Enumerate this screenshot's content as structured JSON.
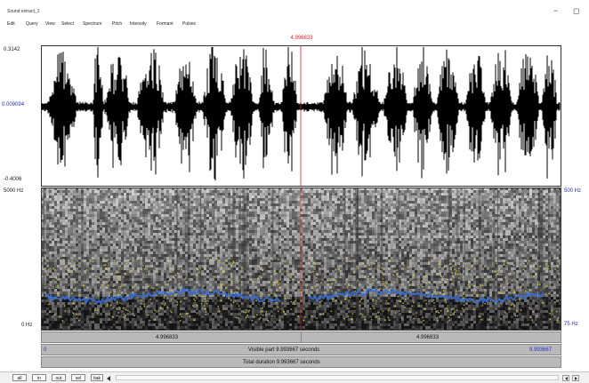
{
  "window": {
    "title": "Sound extract_1",
    "minimize_glyph": "−",
    "restore_glyph": "◻"
  },
  "menu": [
    {
      "label": "Edit"
    },
    {
      "label": "Query"
    },
    {
      "label": "View"
    },
    {
      "label": "Select"
    },
    {
      "label": "Spectrum"
    },
    {
      "label": "Pitch"
    },
    {
      "label": "Intensity"
    },
    {
      "label": "Formant"
    },
    {
      "label": "Pulses"
    }
  ],
  "cursor": {
    "time_label": "4.996833"
  },
  "waveform": {
    "max_label": "0.3142",
    "zero_label": "0.009094",
    "min_label": "-0.4006"
  },
  "spectrogram": {
    "top_label": "5000 Hz",
    "bottom_label": "0 Hz",
    "pitch_top_label": "500 Hz",
    "pitch_bottom_label": "75 Hz"
  },
  "time_bar": {
    "left_segment": "4.996833",
    "right_segment": "4.996833"
  },
  "visible_bar": {
    "start": "0",
    "label": "Visible part 9.993667 seconds",
    "end": "9.993667"
  },
  "total_bar": {
    "label": "Total duration 9.993667 seconds"
  },
  "nav": {
    "all": "all",
    "in": "in",
    "out": "out",
    "sel": "sel",
    "back": "bak"
  },
  "colors": {
    "cursor": "#e0242a",
    "pitch": "#3a6fd8",
    "formant": "#d8d24a",
    "label_blue": "#2030c0",
    "label_green": "#1d9e3a"
  },
  "icons": {
    "scroll_left": "scroll-left-arrow",
    "scroll_right": "scroll-right-arrow"
  }
}
